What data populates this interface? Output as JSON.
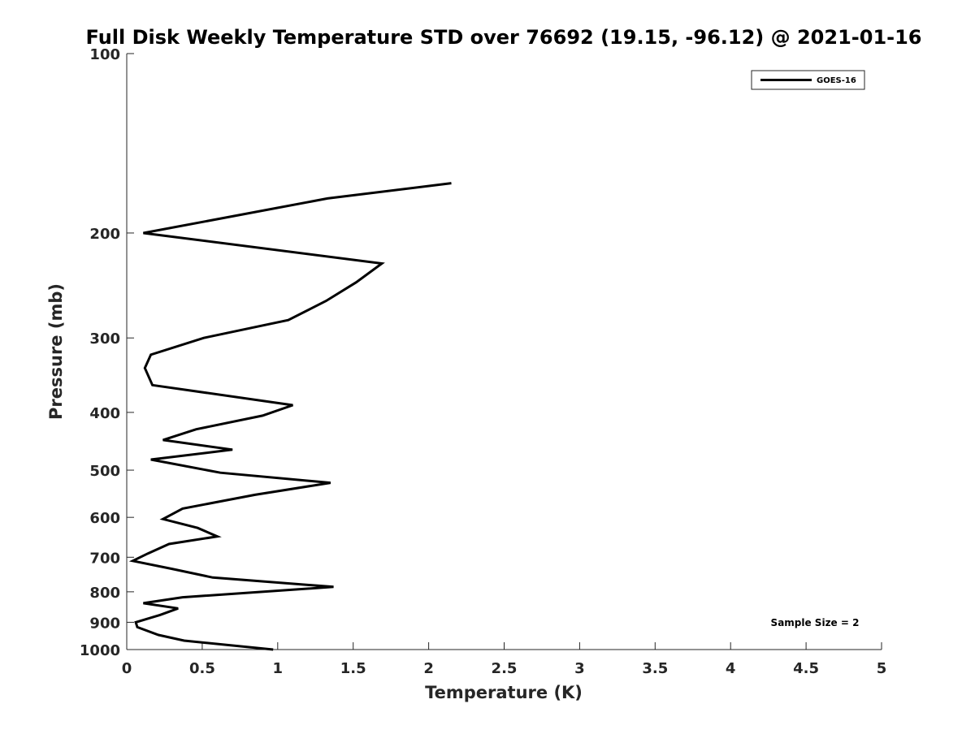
{
  "chart_data": {
    "type": "line",
    "title": "Full Disk Weekly Temperature STD over 76692 (19.15, -96.12) @ 2021-01-16",
    "xlabel": "Temperature (K)",
    "ylabel": "Pressure (mb)",
    "xlim": [
      0,
      5
    ],
    "ylim": [
      100,
      1000
    ],
    "y_scale": "log",
    "y_reversed": true,
    "x_ticks": [
      "0",
      "0.5",
      "1",
      "1.5",
      "2",
      "2.5",
      "3",
      "3.5",
      "4",
      "4.5",
      "5"
    ],
    "y_ticks": [
      "100",
      "200",
      "300",
      "400",
      "500",
      "600",
      "700",
      "800",
      "900",
      "1000"
    ],
    "grid": false,
    "legend_position": "top-right",
    "annotation": "Sample Size = 2",
    "series": [
      {
        "name": "GOES-16",
        "color": "#000000",
        "x": [
          2.15,
          1.33,
          0.11,
          1.69,
          1.52,
          1.32,
          1.07,
          0.51,
          0.16,
          0.12,
          0.17,
          1.1,
          0.9,
          0.46,
          0.24,
          0.7,
          0.16,
          0.62,
          1.35,
          0.85,
          0.37,
          0.24,
          0.47,
          0.6,
          0.28,
          0.14,
          0.04,
          0.3,
          0.57,
          1.37,
          0.37,
          0.11,
          0.34,
          0.22,
          0.06,
          0.07,
          0.21,
          0.38,
          0.97
        ],
        "y": [
          165,
          175,
          200,
          225,
          242,
          260,
          280,
          300,
          320,
          337,
          360,
          389,
          405,
          427,
          445,
          462,
          480,
          505,
          525,
          550,
          580,
          604,
          625,
          646,
          665,
          690,
          710,
          732,
          757,
          785,
          817,
          836,
          853,
          875,
          900,
          917,
          945,
          966,
          1000
        ]
      }
    ]
  }
}
